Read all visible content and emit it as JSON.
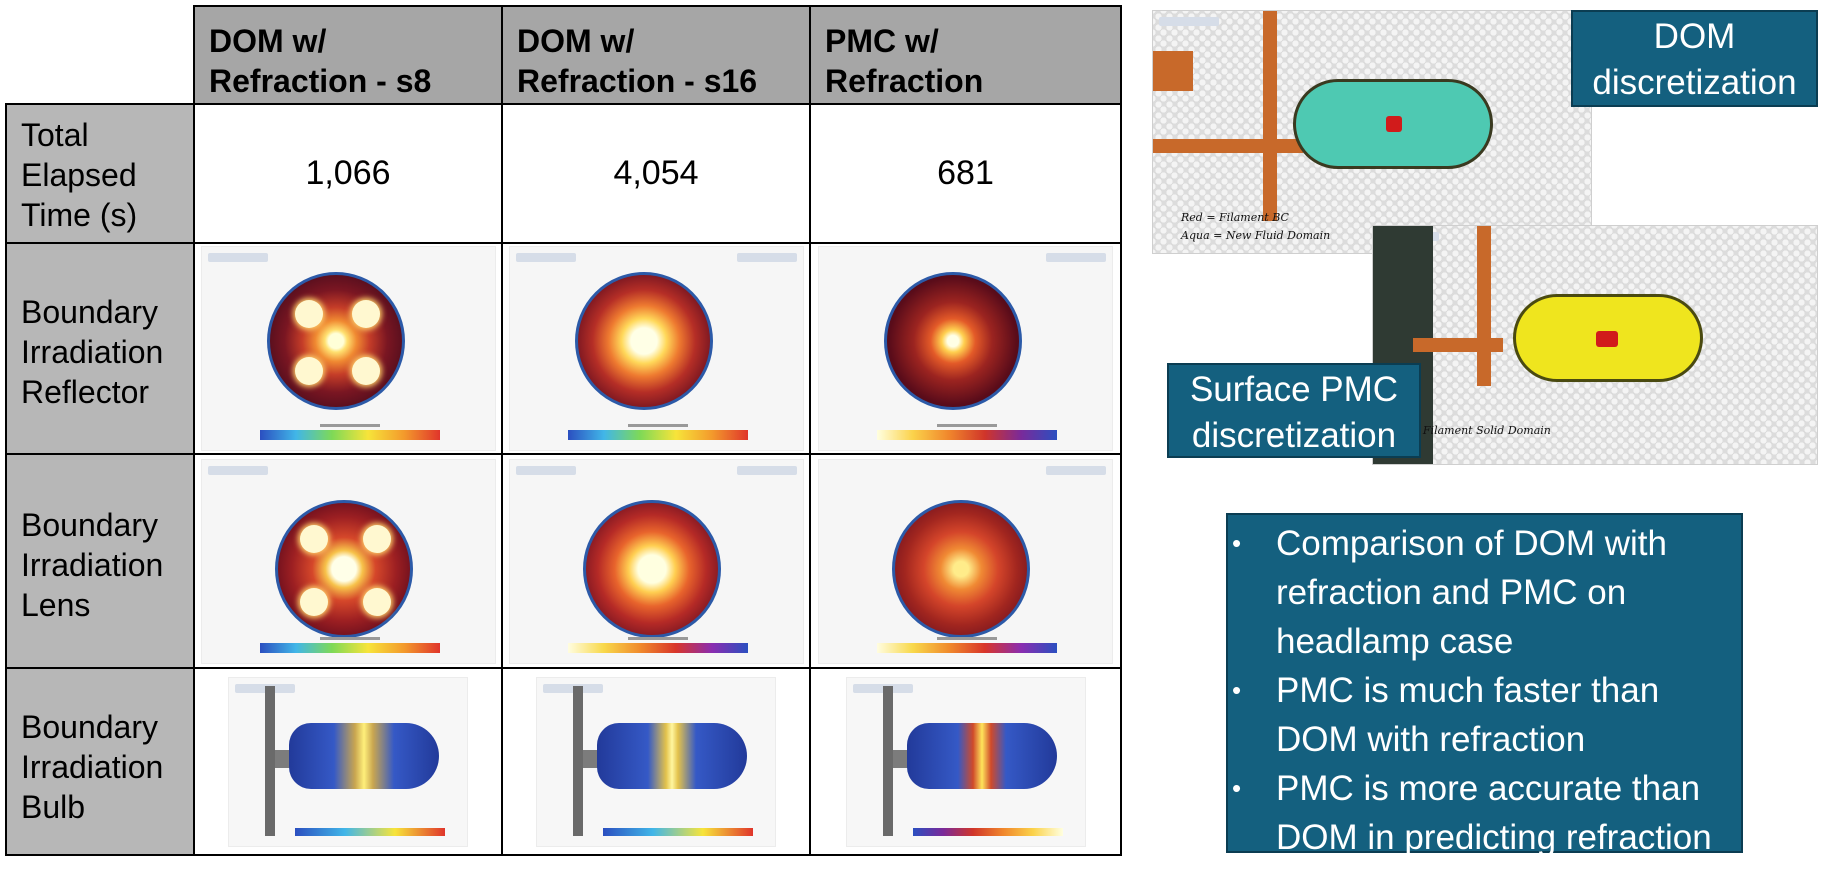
{
  "table": {
    "columns": [
      "DOM w/\nRefraction - s8",
      "DOM w/\nRefraction - s16",
      "PMC w/\nRefraction"
    ],
    "rows": [
      {
        "label": "Total\nElapsed\nTime (s)",
        "values": [
          "1,066",
          "4,054",
          "681"
        ]
      },
      {
        "label": "Boundary\nIrradiation\nReflector"
      },
      {
        "label": "Boundary\nIrradiation\nLens"
      },
      {
        "label": "Boundary\nIrradiation\nBulb"
      }
    ]
  },
  "mesh_images": {
    "dom": {
      "label": "DOM\ndiscretization",
      "caption_1": "Red = Filament BC",
      "caption_2": "Aqua = New Fluid Domain"
    },
    "pmc": {
      "label": "Surface PMC\ndiscretization",
      "caption": "/ = Filament Solid Domain"
    }
  },
  "bullets": [
    "Comparison of DOM with refraction and PMC on headlamp case",
    "PMC is much faster than DOM with refraction",
    "PMC is more accurate than DOM in predicting refraction"
  ],
  "colors": {
    "header_gray": "#a6a6a6",
    "row_header_gray": "#b7b7b7",
    "box_blue": "#14607f",
    "fluid_aqua": "#4ec9b2",
    "solid_yellow": "#efe51e",
    "bracket_orange": "#c8692a"
  }
}
